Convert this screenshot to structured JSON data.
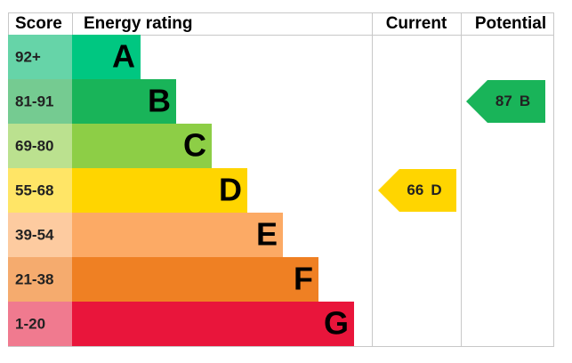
{
  "header": {
    "score": "Score",
    "rating": "Energy rating",
    "current": "Current",
    "potential": "Potential"
  },
  "rows": [
    {
      "score": "92+",
      "letter": "A",
      "color": "#00c781",
      "score_color": "#66d4a8"
    },
    {
      "score": "81-91",
      "letter": "B",
      "color": "#19b459",
      "score_color": "#75cb91"
    },
    {
      "score": "69-80",
      "letter": "C",
      "color": "#8dce46",
      "score_color": "#bbe18f"
    },
    {
      "score": "55-68",
      "letter": "D",
      "color": "#ffd500",
      "score_color": "#ffe566"
    },
    {
      "score": "39-54",
      "letter": "E",
      "color": "#fcaa65",
      "score_color": "#fdcba0"
    },
    {
      "score": "21-38",
      "letter": "F",
      "color": "#ef8023",
      "score_color": "#f5ab6e"
    },
    {
      "score": "1-20",
      "letter": "G",
      "color": "#e9153b",
      "score_color": "#f07a8f"
    }
  ],
  "current": {
    "value": 66,
    "letter": "D"
  },
  "potential": {
    "value": 87,
    "letter": "B"
  }
}
